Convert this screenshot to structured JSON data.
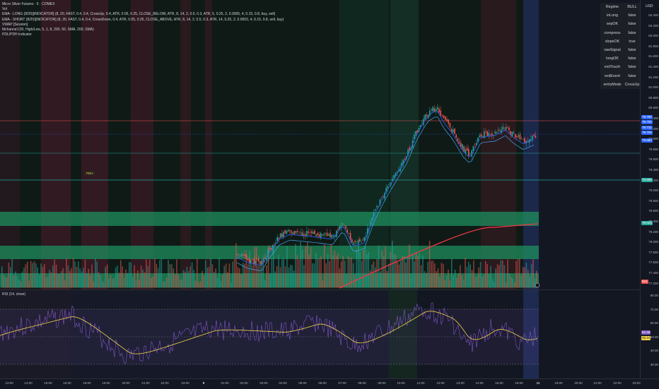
{
  "legend": [
    "Micro Silver Futures · 5 · COMEX",
    "Vol",
    "EMA - LONG (8/20)[INDICATOR] (8, 20, FAST, 0.4, 0.4, CrossUp, 0.4, ATR, 0.05, 0.25, CLOSE_BELOW, ATR, 8, 14, 2, 0.5, 0.3, ATR, 5, 0.25, 2, 0.0005, 4, 0.15, 0.8, buy, sell)",
    "EMA - SHORT (8/20)[INDICATOR] (8, 20, FAST, 0.4, 0.4, CrossDown, 0.4, ATR, 0.05, 0.25, CLOSE_ABOVE, ATR, 8, 14, 2, 0.5, 0.3, ATR, 14, 0.25, 2, 0.0003, 4, 0.15, 0.8, sell, buy)",
    "VWAP [Session]",
    "Mchannel (20, High/Low, 5, 1, 8, 200, 50, SMA, 200, SMA)",
    "PDL/PDH indicator"
  ],
  "currency": "USD",
  "pdh_label": "PDH",
  "status_table": [
    {
      "key": "Regime",
      "value": "BULL"
    },
    {
      "key": "inLong",
      "value": "false"
    },
    {
      "key": "sepOK",
      "value": "false"
    },
    {
      "key": "compress",
      "value": "false"
    },
    {
      "key": "slopeOK",
      "value": "true"
    },
    {
      "key": "rawSignal",
      "value": "false"
    },
    {
      "key": "longOK",
      "value": "false"
    },
    {
      "key": "exitTouch",
      "value": "false"
    },
    {
      "key": "exitEvent",
      "value": "false"
    },
    {
      "key": "entryMode",
      "value": "CrossUp"
    }
  ],
  "price_scale": [
    "82.400",
    "82.200",
    "82.000",
    "81.800",
    "81.600",
    "81.400",
    "81.200",
    "81.000",
    "80.800",
    "80.600",
    "80.400",
    "80.200",
    "80.000",
    "79.800",
    "79.600",
    "79.400",
    "79.200",
    "79.000",
    "78.800",
    "78.600",
    "78.400",
    "78.200",
    "78.000",
    "77.800",
    "77.600",
    "77.400",
    "77.200",
    "77.000"
  ],
  "price_tags": [
    {
      "text": "79.780",
      "color": "#2962ff"
    },
    {
      "text": "79.750",
      "color": "#2962ff"
    },
    {
      "text": "79.731",
      "color": "#2962ff"
    },
    {
      "text": "79.700",
      "color": "#2962ff"
    },
    {
      "text": "79.683",
      "color": "#2962ff"
    },
    {
      "text": "78.869",
      "color": "#26a69a"
    },
    {
      "text": "78.023",
      "color": "#26a69a"
    },
    {
      "text": "824",
      "color": "#ef5350"
    }
  ],
  "rsi_title": "RSI (14, close)",
  "rsi_scale": [
    "80.00",
    "70.00",
    "60.00",
    "50.00",
    "40.00",
    "30.00"
  ],
  "rsi_tags": [
    {
      "text": "52.48",
      "color": "#7e57c2"
    },
    {
      "text": "48.44",
      "color": "#f5d547"
    }
  ],
  "time_labels": [
    "13:00",
    "14:00",
    "15:00",
    "16:00",
    "18:00",
    "19:00",
    "20:00",
    "21:00",
    "22:00",
    "23:00",
    "8",
    "01:00",
    "02:00",
    "03:00",
    "04:00",
    "05:00",
    "06:00",
    "07:00",
    "08:00",
    "09:00",
    "10:00",
    "11:00",
    "12:00",
    "13:00",
    "14:00",
    "15:00",
    "16:00",
    "11",
    "19:00",
    "20:00",
    "21:00",
    "22:00",
    "23:00"
  ],
  "colors": {
    "up": "#26a69a",
    "down": "#ef5350",
    "ema_fast": "#2962ff",
    "vwap_red": "#f23645",
    "rsi": "#7e57c2",
    "rsi_ma": "#f5d547"
  }
}
